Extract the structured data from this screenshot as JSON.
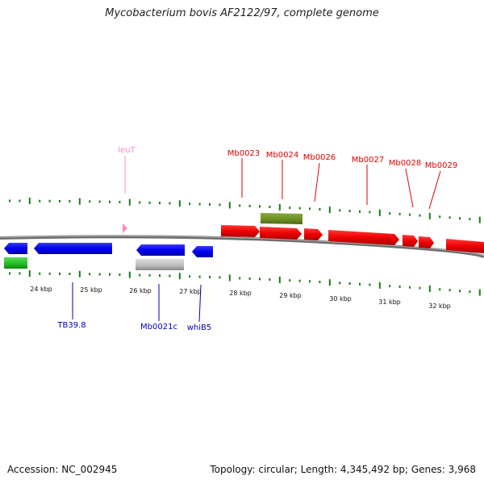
{
  "title": "Mycobacterium bovis AF2122/97, complete genome",
  "footer": {
    "accession": "Accession: NC_002945",
    "summary": "Topology: circular; Length: 4,345,492 bp; Genes: 3,968"
  },
  "colors": {
    "forward_gene": "#ff0000",
    "reverse_gene": "#0000ff",
    "trna": "#ff88cc",
    "other_forward": "#6b8e23",
    "other_reverse": "#33cc33",
    "other_grey": "#bbbbbb",
    "tick": "#1a7a1a",
    "backbone": "#808080"
  },
  "scale": {
    "labels": [
      "24 kbp",
      "25 kbp",
      "26 kbp",
      "27 kbp",
      "28 kbp",
      "29 kbp",
      "30 kbp",
      "31 kbp",
      "32 kbp"
    ]
  },
  "gene_labels": {
    "leuT": "leuT",
    "mb0023": "Mb0023",
    "mb0024": "Mb0024",
    "mb0026": "Mb0026",
    "mb0027": "Mb0027",
    "mb0028": "Mb0028",
    "mb0029": "Mb0029",
    "tb39_8": "TB39.8",
    "mb0021c": "Mb0021c",
    "whiB5": "whiB5"
  }
}
